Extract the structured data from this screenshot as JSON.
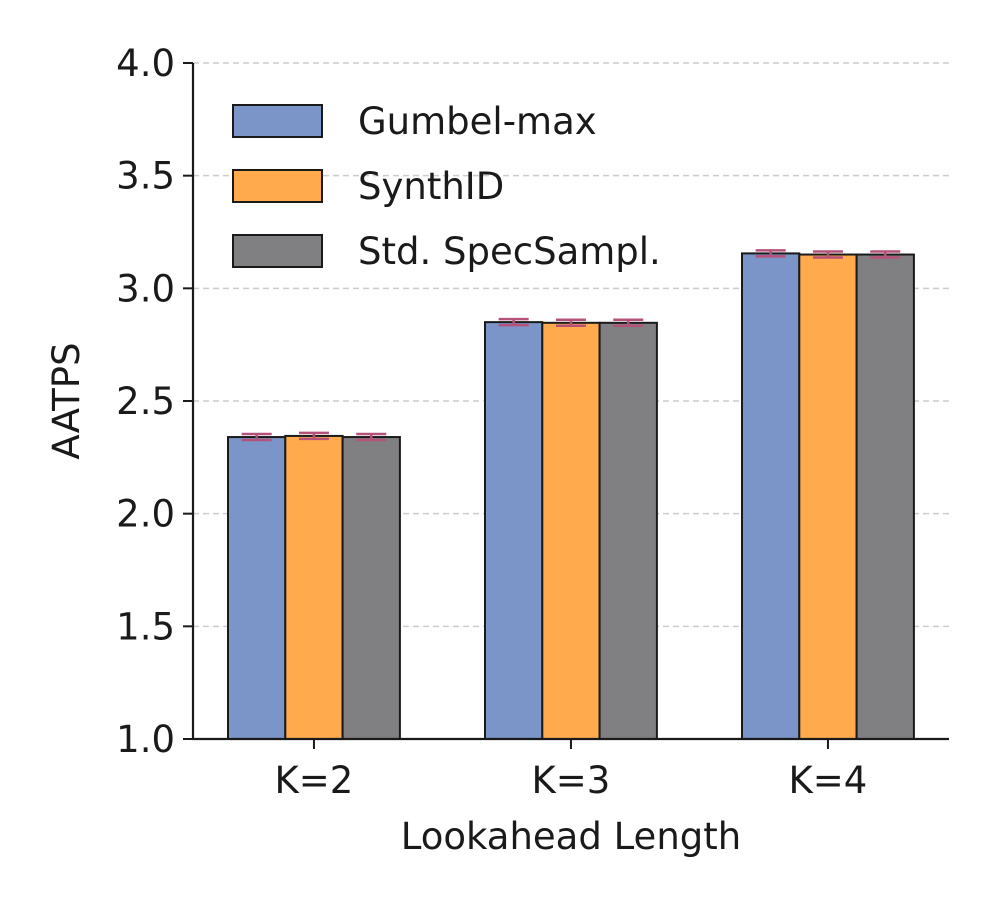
{
  "chart_data": {
    "type": "bar",
    "title": "",
    "xlabel": "Lookahead Length",
    "ylabel": "AATPS",
    "categories": [
      "K=2",
      "K=3",
      "K=4"
    ],
    "ylim": [
      1.0,
      4.0
    ],
    "yticks": [
      "1.0",
      "1.5",
      "2.0",
      "2.5",
      "3.0",
      "3.5",
      "4.0"
    ],
    "grid": "horizontal dashed",
    "legend_position": "top-left",
    "error_bar_color": "#b5527a",
    "series": [
      {
        "name": "Gumbel-max",
        "color": "#7b95c9",
        "values": [
          2.34,
          2.85,
          3.155
        ]
      },
      {
        "name": "SynthID",
        "color": "#ffab4d",
        "values": [
          2.345,
          2.847,
          3.15
        ]
      },
      {
        "name": "Std. SpecSampl.",
        "color": "#808082",
        "values": [
          2.34,
          2.847,
          3.15
        ]
      }
    ]
  }
}
